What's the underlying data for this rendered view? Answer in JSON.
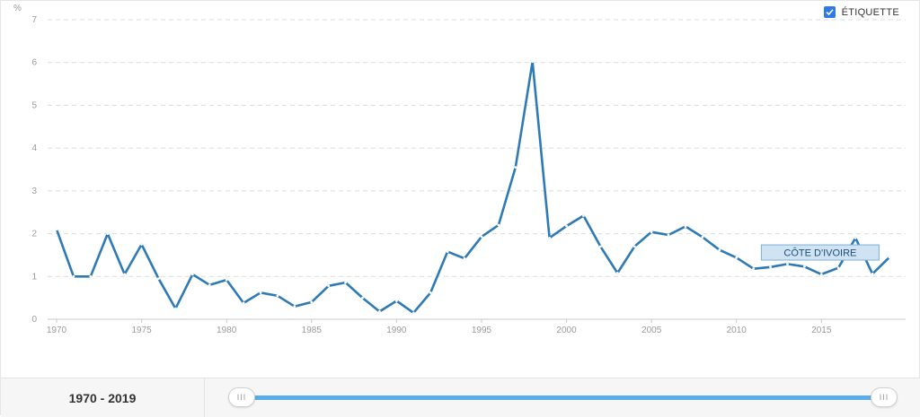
{
  "legend": {
    "label": "ÉTIQUETTE",
    "checked": true
  },
  "footer": {
    "range_label": "1970 - 2019",
    "handle_glyph": "III"
  },
  "colors": {
    "line": "#2e7ab6",
    "slider": "#5aace8",
    "checkbox": "#2f7ae5"
  },
  "chart_data": {
    "type": "line",
    "ylabel": "%",
    "ylim": [
      0,
      7
    ],
    "yticks": [
      0,
      1,
      2,
      3,
      4,
      5,
      6,
      7
    ],
    "xlim": [
      1970,
      2019
    ],
    "xticks": [
      1970,
      1975,
      1980,
      1985,
      1990,
      1995,
      2000,
      2005,
      2010,
      2015
    ],
    "grid": true,
    "series": [
      {
        "name": "CÔTE D'IVOIRE",
        "x": [
          1970,
          1971,
          1972,
          1973,
          1974,
          1975,
          1976,
          1977,
          1978,
          1979,
          1980,
          1981,
          1982,
          1983,
          1984,
          1985,
          1986,
          1987,
          1988,
          1989,
          1990,
          1991,
          1992,
          1993,
          1994,
          1995,
          1996,
          1997,
          1998,
          1999,
          2000,
          2001,
          2002,
          2003,
          2004,
          2005,
          2006,
          2007,
          2008,
          2009,
          2010,
          2011,
          2012,
          2013,
          2014,
          2015,
          2016,
          2017,
          2018,
          2019
        ],
        "values": [
          2.1,
          1.0,
          1.0,
          2.0,
          1.05,
          1.75,
          0.95,
          0.25,
          1.05,
          0.8,
          0.92,
          0.38,
          0.62,
          0.55,
          0.3,
          0.4,
          0.78,
          0.86,
          0.5,
          0.18,
          0.43,
          0.15,
          0.62,
          1.58,
          1.42,
          1.93,
          2.2,
          3.55,
          6.02,
          1.9,
          2.18,
          2.42,
          1.7,
          1.08,
          1.7,
          2.04,
          1.97,
          2.17,
          1.92,
          1.62,
          1.44,
          1.18,
          1.22,
          1.29,
          1.23,
          1.05,
          1.2,
          1.9,
          1.06,
          1.45
        ]
      }
    ]
  }
}
